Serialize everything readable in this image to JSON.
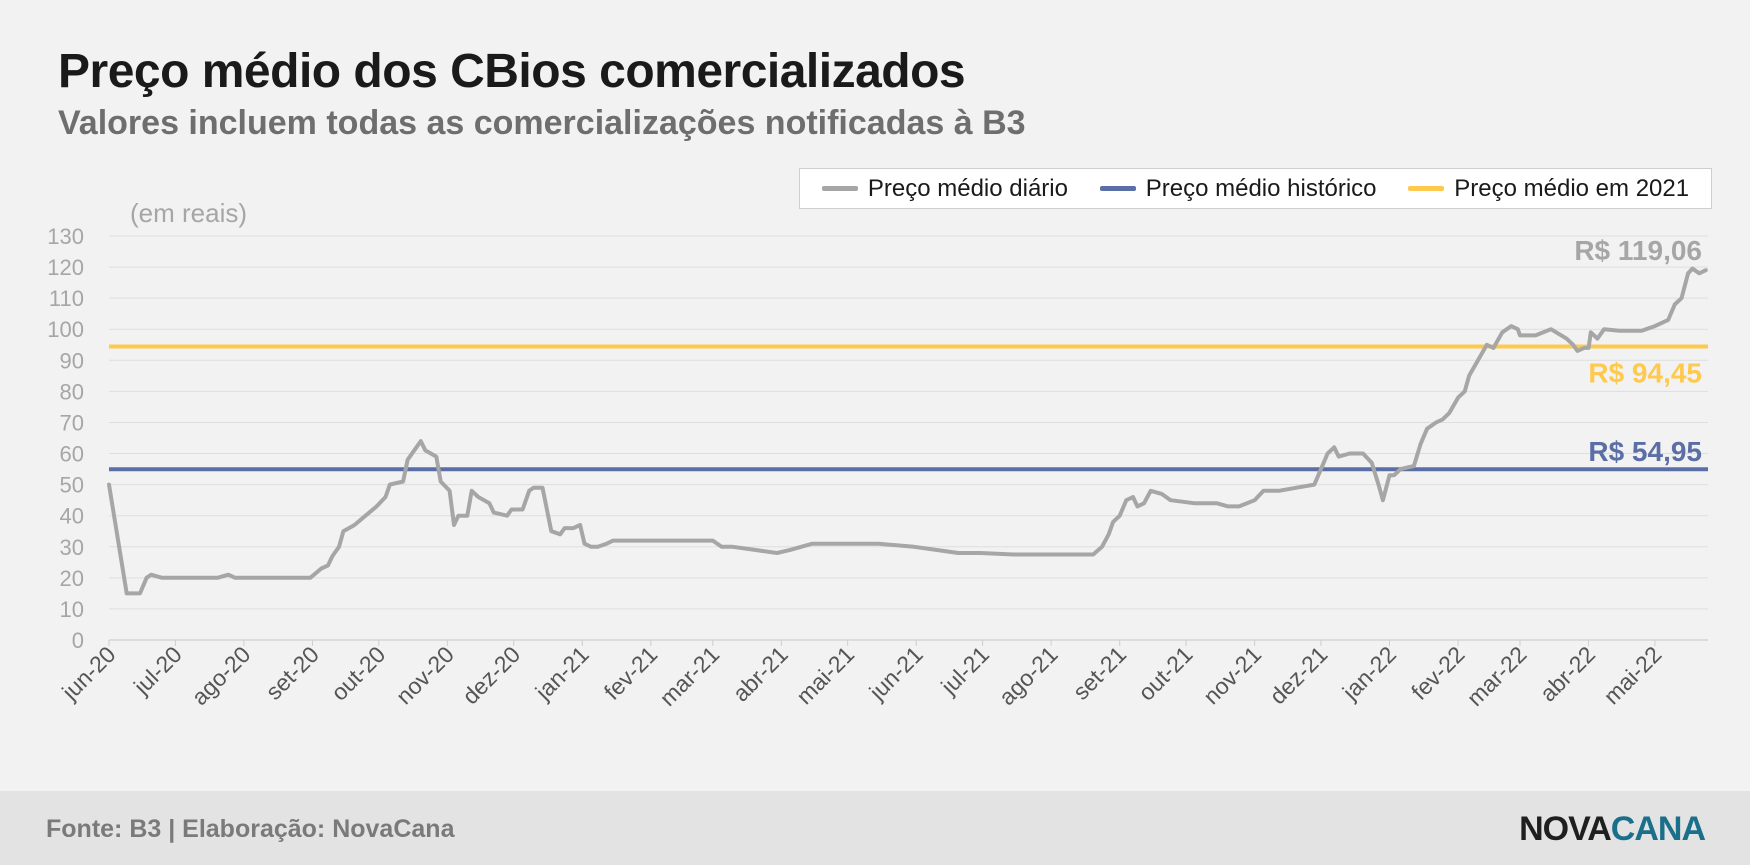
{
  "header": {
    "title": "Preço médio dos CBios comercializados",
    "subtitle": "Valores incluem todas as comercializações notificadas à B3"
  },
  "footer": {
    "source": "Fonte: B3 | Elaboração: NovaCana",
    "logo_part1": "NOVA",
    "logo_part2": "CANA"
  },
  "colors": {
    "daily": "#a6a6a6",
    "historic": "#5b6fa6",
    "avg2021": "#ffc94d"
  },
  "chart_data": {
    "type": "line",
    "ylabel": "(em reais)",
    "ylim": [
      0,
      130
    ],
    "yticks": [
      0,
      10,
      20,
      30,
      40,
      50,
      60,
      70,
      80,
      90,
      100,
      110,
      120,
      130
    ],
    "xticks": [
      "jun-20",
      "jul-20",
      "ago-20",
      "set-20",
      "out-20",
      "nov-20",
      "dez-20",
      "jan-21",
      "fev-21",
      "mar-21",
      "abr-21",
      "mai-21",
      "jun-21",
      "jul-21",
      "ago-21",
      "set-21",
      "out-21",
      "nov-21",
      "dez-21",
      "jan-22",
      "fev-22",
      "mar-22",
      "abr-22",
      "mai-22"
    ],
    "legend_position": "top-right",
    "grid": true,
    "series": [
      {
        "name": "Preço médio diário",
        "points": [
          [
            "2020-06-01",
            50
          ],
          [
            "2020-06-09",
            15
          ],
          [
            "2020-06-15",
            15
          ],
          [
            "2020-06-18",
            20
          ],
          [
            "2020-06-20",
            21
          ],
          [
            "2020-06-25",
            20
          ],
          [
            "2020-07-10",
            20
          ],
          [
            "2020-07-20",
            20
          ],
          [
            "2020-07-25",
            21
          ],
          [
            "2020-07-28",
            20
          ],
          [
            "2020-08-15",
            20
          ],
          [
            "2020-08-31",
            20
          ],
          [
            "2020-09-05",
            23
          ],
          [
            "2020-09-08",
            24
          ],
          [
            "2020-09-10",
            27
          ],
          [
            "2020-09-13",
            30
          ],
          [
            "2020-09-15",
            35
          ],
          [
            "2020-09-20",
            37
          ],
          [
            "2020-09-25",
            40
          ],
          [
            "2020-09-30",
            43
          ],
          [
            "2020-10-04",
            46
          ],
          [
            "2020-10-06",
            50
          ],
          [
            "2020-10-12",
            51
          ],
          [
            "2020-10-14",
            58
          ],
          [
            "2020-10-18",
            62
          ],
          [
            "2020-10-20",
            64
          ],
          [
            "2020-10-22",
            61
          ],
          [
            "2020-10-27",
            59
          ],
          [
            "2020-10-29",
            51
          ],
          [
            "2020-11-02",
            48
          ],
          [
            "2020-11-04",
            37
          ],
          [
            "2020-11-06",
            40
          ],
          [
            "2020-11-10",
            40
          ],
          [
            "2020-11-12",
            48
          ],
          [
            "2020-11-15",
            46
          ],
          [
            "2020-11-20",
            44
          ],
          [
            "2020-11-22",
            41
          ],
          [
            "2020-11-28",
            40
          ],
          [
            "2020-11-30",
            42
          ],
          [
            "2020-12-05",
            42
          ],
          [
            "2020-12-08",
            48
          ],
          [
            "2020-12-10",
            49
          ],
          [
            "2020-12-14",
            49
          ],
          [
            "2020-12-16",
            42
          ],
          [
            "2020-12-18",
            35
          ],
          [
            "2020-12-22",
            34
          ],
          [
            "2020-12-24",
            36
          ],
          [
            "2020-12-28",
            36
          ],
          [
            "2020-12-31",
            37
          ],
          [
            "2021-01-02",
            31
          ],
          [
            "2021-01-05",
            30
          ],
          [
            "2021-01-08",
            30
          ],
          [
            "2021-01-12",
            31
          ],
          [
            "2021-01-15",
            32
          ],
          [
            "2021-02-01",
            32
          ],
          [
            "2021-02-15",
            32
          ],
          [
            "2021-03-01",
            32
          ],
          [
            "2021-03-05",
            30
          ],
          [
            "2021-03-10",
            30
          ],
          [
            "2021-03-20",
            29
          ],
          [
            "2021-03-30",
            28
          ],
          [
            "2021-04-05",
            29
          ],
          [
            "2021-04-10",
            30
          ],
          [
            "2021-04-15",
            31
          ],
          [
            "2021-04-25",
            31
          ],
          [
            "2021-05-15",
            31
          ],
          [
            "2021-05-31",
            30
          ],
          [
            "2021-06-10",
            29
          ],
          [
            "2021-06-20",
            28
          ],
          [
            "2021-06-30",
            28
          ],
          [
            "2021-07-15",
            27.5
          ],
          [
            "2021-08-10",
            27.5
          ],
          [
            "2021-08-20",
            27.5
          ],
          [
            "2021-08-24",
            30
          ],
          [
            "2021-08-27",
            34
          ],
          [
            "2021-08-29",
            38
          ],
          [
            "2021-09-01",
            40
          ],
          [
            "2021-09-04",
            45
          ],
          [
            "2021-09-07",
            46
          ],
          [
            "2021-09-09",
            43
          ],
          [
            "2021-09-12",
            44
          ],
          [
            "2021-09-15",
            48
          ],
          [
            "2021-09-20",
            47
          ],
          [
            "2021-09-24",
            45
          ],
          [
            "2021-10-05",
            44
          ],
          [
            "2021-10-15",
            44
          ],
          [
            "2021-10-20",
            43
          ],
          [
            "2021-10-25",
            43
          ],
          [
            "2021-11-01",
            45
          ],
          [
            "2021-11-05",
            48
          ],
          [
            "2021-11-12",
            48
          ],
          [
            "2021-11-20",
            49
          ],
          [
            "2021-11-28",
            50
          ],
          [
            "2021-12-01",
            55
          ],
          [
            "2021-12-04",
            60
          ],
          [
            "2021-12-07",
            62
          ],
          [
            "2021-12-09",
            59
          ],
          [
            "2021-12-14",
            60
          ],
          [
            "2021-12-20",
            60
          ],
          [
            "2021-12-24",
            57
          ],
          [
            "2021-12-27",
            50
          ],
          [
            "2021-12-29",
            45
          ],
          [
            "2022-01-01",
            53
          ],
          [
            "2022-01-03",
            53
          ],
          [
            "2022-01-06",
            55
          ],
          [
            "2022-01-12",
            56
          ],
          [
            "2022-01-15",
            63
          ],
          [
            "2022-01-18",
            68
          ],
          [
            "2022-01-22",
            70
          ],
          [
            "2022-01-25",
            71
          ],
          [
            "2022-01-28",
            73
          ],
          [
            "2022-02-01",
            78
          ],
          [
            "2022-02-04",
            80
          ],
          [
            "2022-02-06",
            85
          ],
          [
            "2022-02-10",
            90
          ],
          [
            "2022-02-14",
            95
          ],
          [
            "2022-02-17",
            94
          ],
          [
            "2022-02-21",
            99
          ],
          [
            "2022-02-25",
            101
          ],
          [
            "2022-02-28",
            100
          ],
          [
            "2022-03-01",
            98
          ],
          [
            "2022-03-08",
            98
          ],
          [
            "2022-03-15",
            100
          ],
          [
            "2022-03-22",
            97
          ],
          [
            "2022-03-25",
            95
          ],
          [
            "2022-03-27",
            93
          ],
          [
            "2022-03-30",
            94
          ],
          [
            "2022-04-01",
            94
          ],
          [
            "2022-04-02",
            99
          ],
          [
            "2022-04-05",
            97
          ],
          [
            "2022-04-08",
            100
          ],
          [
            "2022-04-15",
            99.5
          ],
          [
            "2022-04-25",
            99.5
          ],
          [
            "2022-05-01",
            101
          ],
          [
            "2022-05-07",
            103
          ],
          [
            "2022-05-10",
            108
          ],
          [
            "2022-05-13",
            110
          ],
          [
            "2022-05-16",
            118
          ],
          [
            "2022-05-18",
            119.5
          ],
          [
            "2022-05-21",
            118
          ],
          [
            "2022-05-24",
            119
          ]
        ]
      },
      {
        "name": "Preço médio histórico",
        "value": 54.95,
        "label": "R$ 54,95"
      },
      {
        "name": "Preço médio em 2021",
        "value": 94.45,
        "label": "R$ 94,45"
      }
    ],
    "annotations": [
      {
        "text": "R$ 119,06"
      }
    ]
  }
}
